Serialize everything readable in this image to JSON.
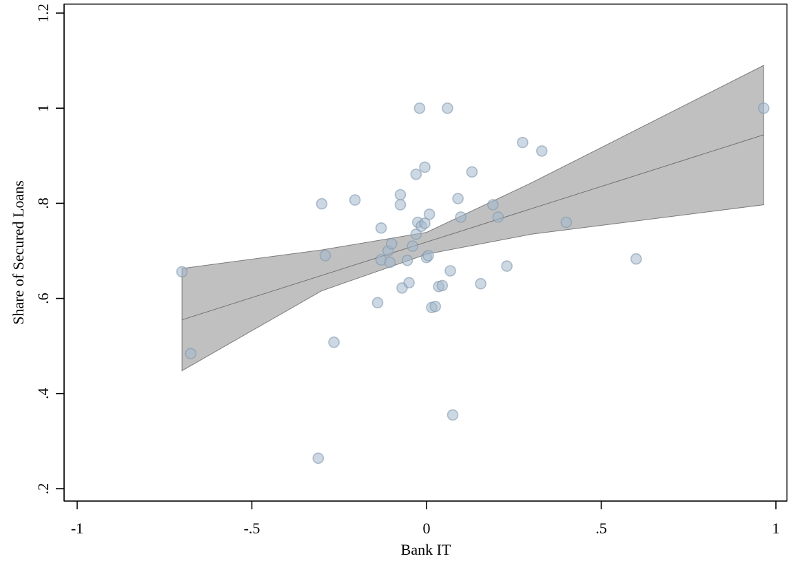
{
  "chart_data": {
    "type": "scatter",
    "xlabel": "Bank IT",
    "ylabel": "Share of Secured Loans",
    "xlim": [
      -1,
      1
    ],
    "ylim": [
      0.2,
      1.2
    ],
    "x_ticks": [
      -1,
      -0.5,
      0,
      0.5,
      1
    ],
    "x_tick_labels": [
      "-1",
      "-.5",
      "0",
      ".5",
      "1"
    ],
    "y_ticks": [
      0.2,
      0.4,
      0.6,
      0.8,
      1.0,
      1.2
    ],
    "y_tick_labels": [
      ".2",
      ".4",
      ".6",
      ".8",
      "1",
      "1.2"
    ],
    "grid": false,
    "points": [
      {
        "x": -0.7,
        "y": 0.656
      },
      {
        "x": -0.675,
        "y": 0.484
      },
      {
        "x": -0.31,
        "y": 0.264
      },
      {
        "x": -0.3,
        "y": 0.799
      },
      {
        "x": -0.29,
        "y": 0.69
      },
      {
        "x": -0.265,
        "y": 0.508
      },
      {
        "x": -0.205,
        "y": 0.807
      },
      {
        "x": -0.14,
        "y": 0.591
      },
      {
        "x": -0.13,
        "y": 0.748
      },
      {
        "x": -0.13,
        "y": 0.681
      },
      {
        "x": -0.11,
        "y": 0.7
      },
      {
        "x": -0.105,
        "y": 0.676
      },
      {
        "x": -0.1,
        "y": 0.715
      },
      {
        "x": -0.075,
        "y": 0.818
      },
      {
        "x": -0.075,
        "y": 0.797
      },
      {
        "x": -0.07,
        "y": 0.622
      },
      {
        "x": -0.055,
        "y": 0.68
      },
      {
        "x": -0.05,
        "y": 0.633
      },
      {
        "x": -0.04,
        "y": 0.71
      },
      {
        "x": -0.03,
        "y": 0.735
      },
      {
        "x": -0.03,
        "y": 0.861
      },
      {
        "x": -0.025,
        "y": 0.76
      },
      {
        "x": -0.02,
        "y": 1.0
      },
      {
        "x": -0.015,
        "y": 0.752
      },
      {
        "x": -0.005,
        "y": 0.758
      },
      {
        "x": -0.005,
        "y": 0.876
      },
      {
        "x": 0.0,
        "y": 0.686
      },
      {
        "x": 0.005,
        "y": 0.69
      },
      {
        "x": 0.008,
        "y": 0.777
      },
      {
        "x": 0.015,
        "y": 0.581
      },
      {
        "x": 0.025,
        "y": 0.583
      },
      {
        "x": 0.035,
        "y": 0.625
      },
      {
        "x": 0.045,
        "y": 0.627
      },
      {
        "x": 0.06,
        "y": 1.0
      },
      {
        "x": 0.068,
        "y": 0.658
      },
      {
        "x": 0.075,
        "y": 0.355
      },
      {
        "x": 0.09,
        "y": 0.81
      },
      {
        "x": 0.098,
        "y": 0.771
      },
      {
        "x": 0.13,
        "y": 0.866
      },
      {
        "x": 0.155,
        "y": 0.631
      },
      {
        "x": 0.19,
        "y": 0.797
      },
      {
        "x": 0.205,
        "y": 0.771
      },
      {
        "x": 0.23,
        "y": 0.668
      },
      {
        "x": 0.275,
        "y": 0.928
      },
      {
        "x": 0.33,
        "y": 0.91
      },
      {
        "x": 0.4,
        "y": 0.76
      },
      {
        "x": 0.6,
        "y": 0.683
      },
      {
        "x": 0.965,
        "y": 1.0
      }
    ],
    "fit_line": {
      "x": [
        -0.7,
        0.965
      ],
      "y": [
        0.555,
        0.944
      ]
    },
    "ci_band": {
      "x": [
        -0.7,
        -0.3,
        0.0,
        0.3,
        0.965
      ],
      "lower": [
        0.448,
        0.616,
        0.693,
        0.735,
        0.797
      ],
      "upper": [
        0.663,
        0.702,
        0.739,
        0.843,
        1.09
      ]
    }
  }
}
